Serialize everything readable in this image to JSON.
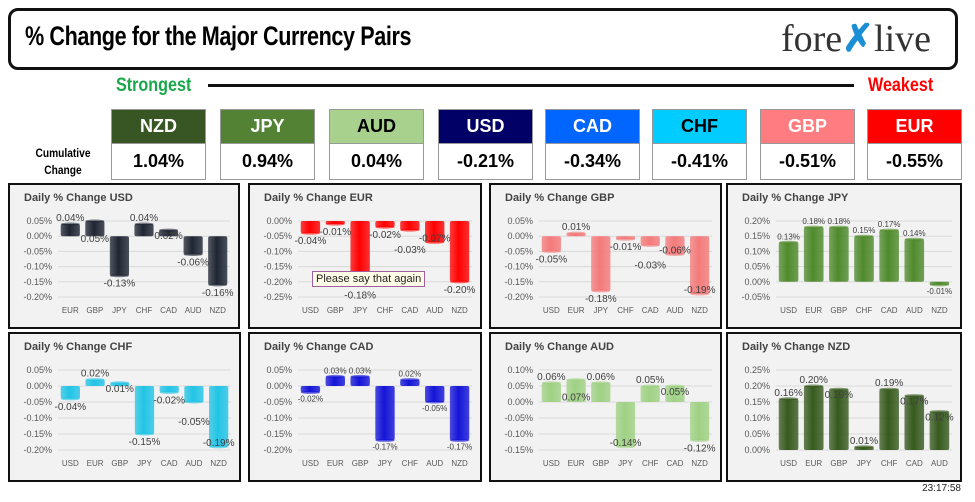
{
  "header": {
    "title": "% Change for the Major Currency Pairs",
    "logo": "forexlive"
  },
  "ranking": {
    "strongest": "Strongest",
    "weakest": "Weakest",
    "cumulative_label": "Cumulative Change",
    "currencies": [
      {
        "code": "NZD",
        "change": "1.04%",
        "color": "#375623",
        "text": "#ffffff"
      },
      {
        "code": "JPY",
        "change": "0.94%",
        "color": "#548235",
        "text": "#ffffff"
      },
      {
        "code": "AUD",
        "change": "0.04%",
        "color": "#a9d18e",
        "text": "#000000"
      },
      {
        "code": "USD",
        "change": "-0.21%",
        "color": "#000066",
        "text": "#ffffff"
      },
      {
        "code": "CAD",
        "change": "-0.34%",
        "color": "#0066ff",
        "text": "#ffffff"
      },
      {
        "code": "CHF",
        "change": "-0.41%",
        "color": "#00ccff",
        "text": "#000000"
      },
      {
        "code": "GBP",
        "change": "-0.51%",
        "color": "#ff7c80",
        "text": "#ffffff"
      },
      {
        "code": "EUR",
        "change": "-0.55%",
        "color": "#ff0000",
        "text": "#ffffff"
      }
    ]
  },
  "chart_data": [
    {
      "type": "bar",
      "title": "Daily % Change USD",
      "categories": [
        "EUR",
        "GBP",
        "JPY",
        "CHF",
        "CAD",
        "AUD",
        "NZD"
      ],
      "values": [
        0.04,
        0.05,
        -0.13,
        0.04,
        0.02,
        -0.06,
        -0.16
      ],
      "labels": [
        "0.04%",
        "0.05%",
        "-0.13%",
        "0.04%",
        "0.02%",
        "-0.06%",
        "-0.16%"
      ],
      "ylim": [
        -0.2,
        0.05
      ],
      "ticks": [
        "0.05%",
        "0.00%",
        "-0.05%",
        "-0.10%",
        "-0.15%",
        "-0.20%"
      ],
      "color": "#1f2633"
    },
    {
      "type": "bar",
      "title": "Daily % Change EUR",
      "categories": [
        "USD",
        "GBP",
        "JPY",
        "CHF",
        "CAD",
        "AUD",
        "NZD"
      ],
      "values": [
        -0.04,
        -0.01,
        -0.18,
        -0.02,
        -0.03,
        -0.07,
        -0.2
      ],
      "labels": [
        "-0.04%",
        "-0.01%",
        "-0.18%",
        "-0.02%",
        "-0.03%",
        "-0.07%",
        "-0.20%"
      ],
      "ylim": [
        -0.25,
        0.0
      ],
      "ticks": [
        "0.00%",
        "-0.05%",
        "-0.10%",
        "-0.15%",
        "-0.20%",
        "-0.25%"
      ],
      "color": "#ff0000",
      "tooltip": "Please say that again"
    },
    {
      "type": "bar",
      "title": "Daily % Change GBP",
      "categories": [
        "USD",
        "EUR",
        "JPY",
        "CHF",
        "CAD",
        "AUD",
        "NZD"
      ],
      "values": [
        -0.05,
        0.01,
        -0.18,
        -0.01,
        -0.03,
        -0.06,
        -0.19
      ],
      "labels": [
        "-0.05%",
        "0.01%",
        "-0.18%",
        "-0.01%",
        "-0.03%",
        "-0.06%",
        "-0.19%"
      ],
      "ylim": [
        -0.2,
        0.05
      ],
      "ticks": [
        "0.05%",
        "0.00%",
        "-0.05%",
        "-0.10%",
        "-0.15%",
        "-0.20%"
      ],
      "color": "#f47a7a"
    },
    {
      "type": "bar",
      "title": "Daily % Change JPY",
      "categories": [
        "USD",
        "EUR",
        "GBP",
        "CHF",
        "CAD",
        "AUD",
        "NZD"
      ],
      "values": [
        0.13,
        0.18,
        0.18,
        0.15,
        0.17,
        0.14,
        -0.01
      ],
      "labels": [
        "0.13%",
        "0.18%",
        "0.18%",
        "0.15%",
        "0.17%",
        "0.14%",
        "-0.01%"
      ],
      "ylim": [
        -0.05,
        0.2
      ],
      "ticks": [
        "0.20%",
        "0.15%",
        "0.10%",
        "0.05%",
        "0.00%",
        "-0.05%"
      ],
      "color": "#4f8a2c",
      "small": true
    },
    {
      "type": "bar",
      "title": "Daily % Change CHF",
      "categories": [
        "USD",
        "EUR",
        "GBP",
        "JPY",
        "CAD",
        "AUD",
        "NZD"
      ],
      "values": [
        -0.04,
        0.02,
        0.01,
        -0.15,
        -0.02,
        -0.05,
        -0.19
      ],
      "labels": [
        "-0.04%",
        "0.02%",
        "0.01%",
        "-0.15%",
        "-0.02%",
        "-0.05%",
        "-0.19%"
      ],
      "ylim": [
        -0.2,
        0.05
      ],
      "ticks": [
        "0.05%",
        "0.00%",
        "-0.05%",
        "-0.10%",
        "-0.15%",
        "-0.20%"
      ],
      "color": "#22c4e6"
    },
    {
      "type": "bar",
      "title": "Daily % Change CAD",
      "categories": [
        "USD",
        "EUR",
        "GBP",
        "JPY",
        "CHF",
        "AUD",
        "NZD"
      ],
      "values": [
        -0.02,
        0.03,
        0.03,
        -0.17,
        0.02,
        -0.05,
        -0.17
      ],
      "labels": [
        "-0.02%",
        "0.03%",
        "0.03%",
        "-0.17%",
        "0.02%",
        "-0.05%",
        "-0.17%"
      ],
      "ylim": [
        -0.2,
        0.05
      ],
      "ticks": [
        "0.05%",
        "0.00%",
        "-0.05%",
        "-0.10%",
        "-0.15%",
        "-0.20%"
      ],
      "color": "#1414d8",
      "small": true
    },
    {
      "type": "bar",
      "title": "Daily % Change AUD",
      "categories": [
        "USD",
        "EUR",
        "GBP",
        "JPY",
        "CHF",
        "CAD",
        "NZD"
      ],
      "values": [
        0.06,
        0.07,
        0.06,
        -0.14,
        0.05,
        0.05,
        -0.12
      ],
      "labels": [
        "0.06%",
        "0.07%",
        "0.06%",
        "-0.14%",
        "0.05%",
        "0.05%",
        "-0.12%"
      ],
      "ylim": [
        -0.15,
        0.1
      ],
      "ticks": [
        "0.10%",
        "0.05%",
        "0.00%",
        "-0.05%",
        "-0.10%",
        "-0.15%"
      ],
      "color": "#9fd184"
    },
    {
      "type": "bar",
      "title": "Daily % Change NZD",
      "categories": [
        "USD",
        "EUR",
        "GBP",
        "JPY",
        "CHF",
        "CAD",
        "AUD"
      ],
      "values": [
        0.16,
        0.2,
        0.19,
        0.01,
        0.19,
        0.17,
        0.12
      ],
      "labels": [
        "0.16%",
        "0.20%",
        "0.19%",
        "0.01%",
        "0.19%",
        "0.17%",
        "0.12%"
      ],
      "ylim": [
        0.0,
        0.25
      ],
      "ticks": [
        "0.25%",
        "0.20%",
        "0.15%",
        "0.10%",
        "0.05%",
        "0.00%"
      ],
      "color": "#375a1e"
    }
  ],
  "timestamp": "23:17:58"
}
